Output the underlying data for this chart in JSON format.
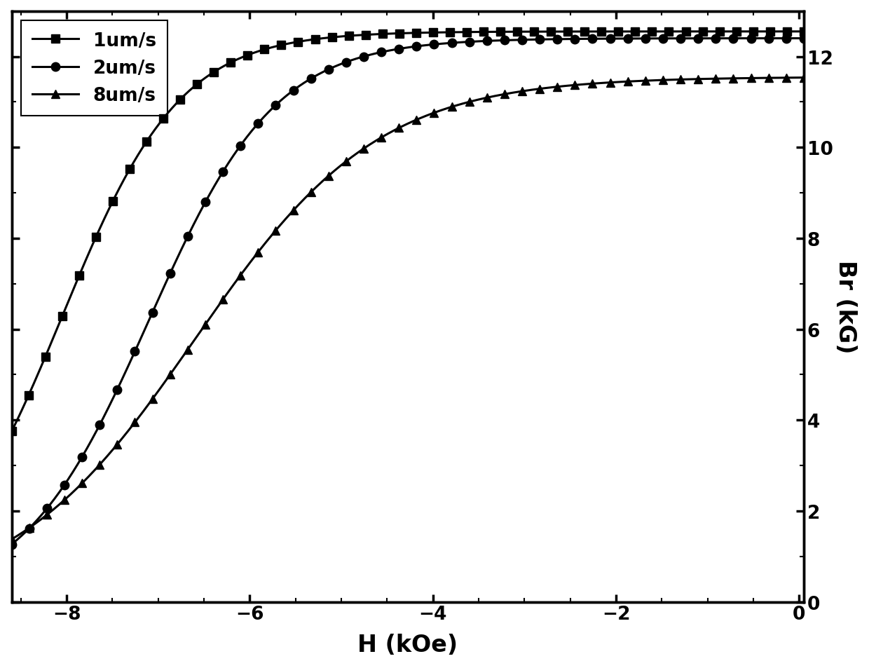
{
  "xlabel": "H (kOe)",
  "ylabel": "Br (kG)",
  "xlim": [
    -8.6,
    0.05
  ],
  "ylim": [
    0,
    13.0
  ],
  "xticks": [
    -8,
    -6,
    -4,
    -2,
    0
  ],
  "yticks": [
    0,
    2,
    4,
    6,
    8,
    10,
    12
  ],
  "series": [
    {
      "label": "1um/s",
      "marker": "s",
      "x0": -8.05,
      "k": 1.55,
      "Bmax": 12.55,
      "n_markers": 48
    },
    {
      "label": "2um/s",
      "marker": "o",
      "x0": -7.1,
      "k": 1.45,
      "Bmax": 12.4,
      "n_markers": 46
    },
    {
      "label": "8um/s",
      "marker": "^",
      "x0": -6.6,
      "k": 1.0,
      "Bmax": 11.55,
      "n_markers": 46
    }
  ],
  "line_color": "#000000",
  "linewidth": 2.2,
  "markersize": 9,
  "legend_fontsize": 19,
  "axis_label_fontsize": 24,
  "tick_fontsize": 19,
  "tick_fontweight": "bold",
  "label_fontweight": "bold",
  "background_color": "#ffffff"
}
